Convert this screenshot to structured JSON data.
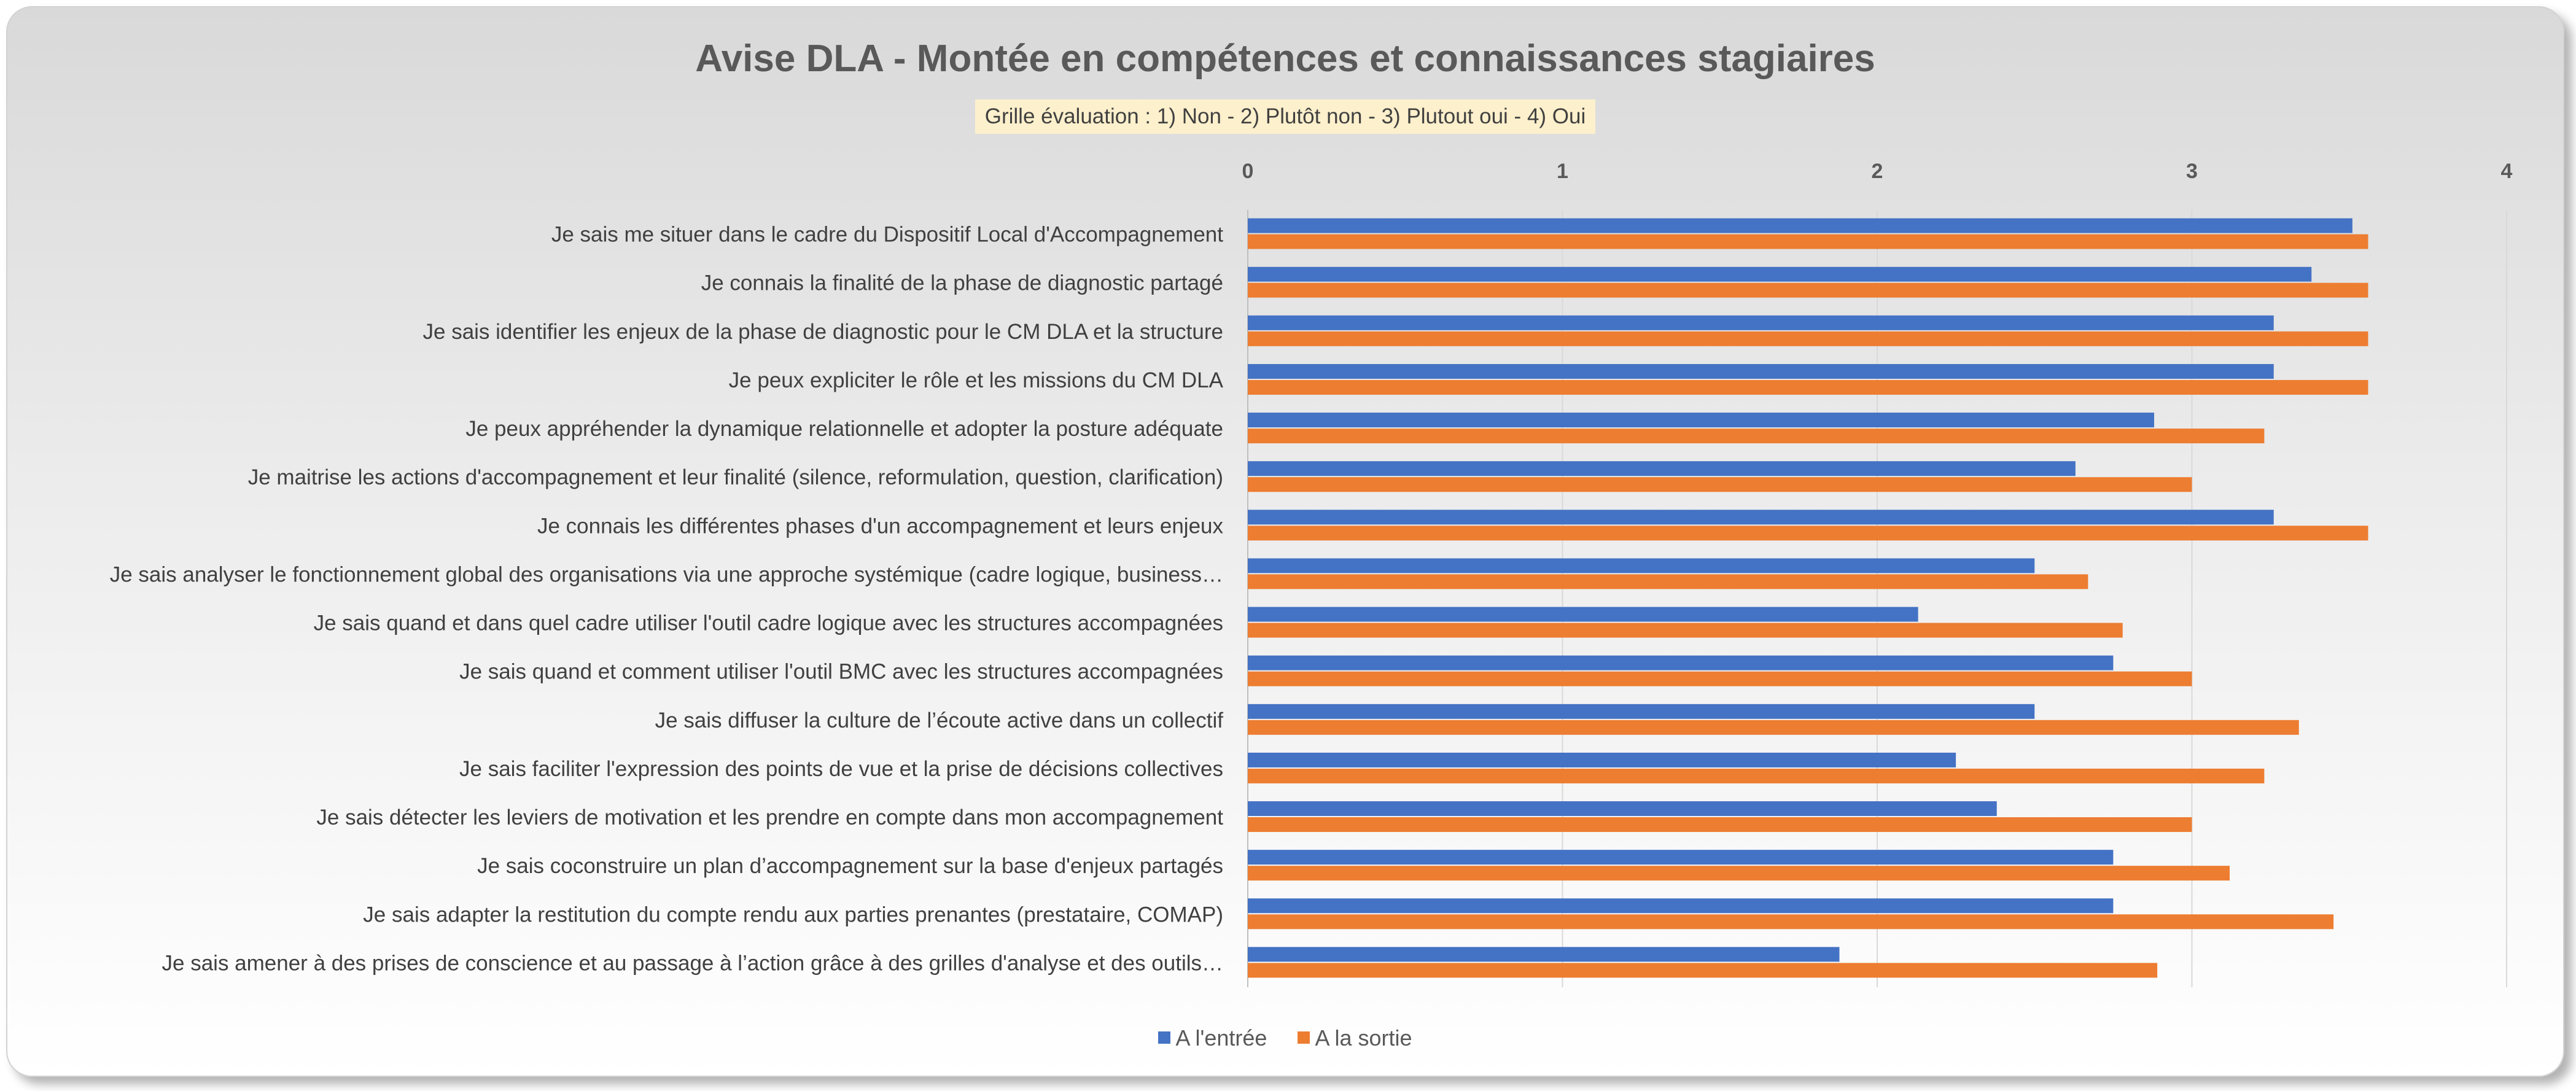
{
  "chart_data": {
    "type": "bar",
    "orientation": "horizontal",
    "title": "Avise DLA - Montée en compétences et connaissances stagiaires",
    "subtitle": "Grille évaluation :  1) Non  -  2) Plutôt non  -  3) Plutout oui  -  4) Oui",
    "xlim": [
      0,
      4
    ],
    "xticks": [
      "0",
      "1",
      "2",
      "3",
      "4"
    ],
    "grid": true,
    "legend_position": "bottom",
    "categories": [
      "Je sais me situer dans le cadre du Dispositif Local d'Accompagnement",
      "Je connais la finalité de la phase de diagnostic partagé",
      "Je sais identifier les enjeux de la phase de diagnostic pour le CM DLA et la structure",
      "Je peux expliciter le rôle et les missions du CM DLA",
      "Je peux appréhender la dynamique relationnelle et adopter la posture adéquate",
      "Je maitrise les actions d'accompagnement et leur finalité (silence, reformulation, question, clarification)",
      "Je connais les différentes phases d'un accompagnement et leurs enjeux",
      "Je sais analyser le fonctionnement global des organisations via une approche systémique (cadre logique, business…",
      "Je sais quand et dans quel cadre utiliser l'outil cadre logique avec les structures accompagnées",
      "Je sais quand et comment utiliser l'outil BMC avec les structures accompagnées",
      "Je sais diffuser la culture de l’écoute active dans un collectif",
      "Je sais faciliter l'expression des points de vue et la prise de décisions collectives",
      "Je sais détecter les leviers de motivation et les prendre en compte dans mon accompagnement",
      "Je sais coconstruire un plan d’accompagnement sur la base d'enjeux partagés",
      "Je sais adapter la restitution du compte rendu aux parties prenantes (prestataire, COMAP)",
      "Je sais amener à des prises de conscience et au passage à l’action grâce à des grilles d'analyse et des outils…"
    ],
    "series": [
      {
        "name": "A l'entrée",
        "color": "#4472c4",
        "values": [
          3.51,
          3.38,
          3.26,
          3.26,
          2.88,
          2.63,
          3.26,
          2.5,
          2.13,
          2.75,
          2.5,
          2.25,
          2.38,
          2.75,
          2.75,
          1.88
        ]
      },
      {
        "name": "A la sortie",
        "color": "#ed7d31",
        "values": [
          3.56,
          3.56,
          3.56,
          3.56,
          3.23,
          3.0,
          3.56,
          2.67,
          2.78,
          3.0,
          3.34,
          3.23,
          3.0,
          3.12,
          3.45,
          2.89
        ]
      }
    ]
  }
}
